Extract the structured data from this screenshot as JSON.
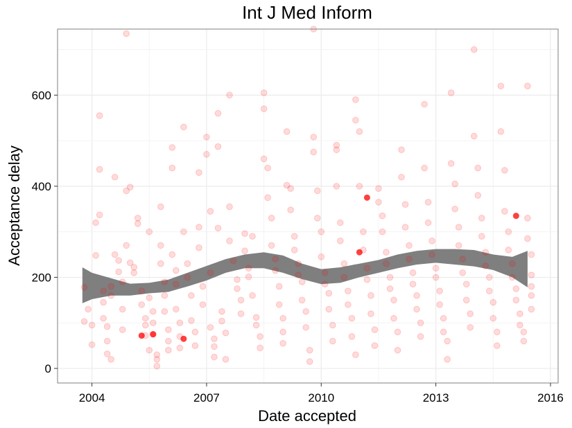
{
  "chart_data": {
    "type": "scatter",
    "title": "Int J Med Inform",
    "xlabel": "Date accepted",
    "ylabel": "Acceptance delay",
    "x_ticks": [
      2004,
      2007,
      2010,
      2013,
      2016
    ],
    "y_ticks": [
      0,
      200,
      400,
      600
    ],
    "xlim": [
      2003.1,
      2016.2
    ],
    "ylim": [
      -32,
      745
    ],
    "grid": true,
    "point_color": "#ff0000",
    "smooth_color": "#7f7f7f",
    "points": [
      [
        2003.8,
        178
      ],
      [
        2003.8,
        103
      ],
      [
        2003.9,
        130
      ],
      [
        2004.0,
        95
      ],
      [
        2004.0,
        52
      ],
      [
        2004.1,
        248
      ],
      [
        2004.1,
        320
      ],
      [
        2004.2,
        337
      ],
      [
        2004.2,
        437
      ],
      [
        2004.2,
        555
      ],
      [
        2004.3,
        170
      ],
      [
        2004.3,
        145
      ],
      [
        2004.3,
        110
      ],
      [
        2004.4,
        92
      ],
      [
        2004.4,
        60
      ],
      [
        2004.4,
        32
      ],
      [
        2004.5,
        180
      ],
      [
        2004.5,
        160
      ],
      [
        2004.5,
        20
      ],
      [
        2004.6,
        420
      ],
      [
        2004.6,
        250
      ],
      [
        2004.7,
        237
      ],
      [
        2004.7,
        212
      ],
      [
        2004.8,
        190
      ],
      [
        2004.8,
        130
      ],
      [
        2004.8,
        85
      ],
      [
        2004.9,
        735
      ],
      [
        2004.9,
        390
      ],
      [
        2004.9,
        270
      ],
      [
        2005.0,
        232
      ],
      [
        2005.0,
        398
      ],
      [
        2005.1,
        222
      ],
      [
        2005.1,
        210
      ],
      [
        2005.2,
        330
      ],
      [
        2005.2,
        318
      ],
      [
        2005.3,
        170
      ],
      [
        2005.3,
        140
      ],
      [
        2005.4,
        110
      ],
      [
        2005.4,
        72
      ],
      [
        2005.4,
        95
      ],
      [
        2005.5,
        300
      ],
      [
        2005.5,
        155
      ],
      [
        2005.5,
        40
      ],
      [
        2005.6,
        125
      ],
      [
        2005.6,
        100
      ],
      [
        2005.6,
        75
      ],
      [
        2005.7,
        30
      ],
      [
        2005.7,
        20
      ],
      [
        2005.7,
        5
      ],
      [
        2005.8,
        355
      ],
      [
        2005.8,
        270
      ],
      [
        2005.8,
        230
      ],
      [
        2005.9,
        190
      ],
      [
        2005.9,
        160
      ],
      [
        2005.9,
        125
      ],
      [
        2006.0,
        85
      ],
      [
        2006.0,
        60
      ],
      [
        2006.0,
        40
      ],
      [
        2006.1,
        485
      ],
      [
        2006.1,
        440
      ],
      [
        2006.1,
        250
      ],
      [
        2006.2,
        215
      ],
      [
        2006.2,
        185
      ],
      [
        2006.2,
        130
      ],
      [
        2006.3,
        100
      ],
      [
        2006.3,
        70
      ],
      [
        2006.3,
        45
      ],
      [
        2006.4,
        530
      ],
      [
        2006.4,
        300
      ],
      [
        2006.5,
        230
      ],
      [
        2006.5,
        200
      ],
      [
        2006.6,
        160
      ],
      [
        2006.6,
        105
      ],
      [
        2006.7,
        80
      ],
      [
        2006.7,
        50
      ],
      [
        2006.8,
        430
      ],
      [
        2006.8,
        310
      ],
      [
        2006.8,
        265
      ],
      [
        2006.9,
        180
      ],
      [
        2006.9,
        140
      ],
      [
        2007.0,
        508
      ],
      [
        2007.0,
        470
      ],
      [
        2007.1,
        345
      ],
      [
        2007.1,
        210
      ],
      [
        2007.1,
        90
      ],
      [
        2007.2,
        65
      ],
      [
        2007.2,
        48
      ],
      [
        2007.2,
        25
      ],
      [
        2007.3,
        560
      ],
      [
        2007.3,
        487
      ],
      [
        2007.3,
        308
      ],
      [
        2007.4,
        125
      ],
      [
        2007.4,
        104
      ],
      [
        2007.5,
        78
      ],
      [
        2007.5,
        20
      ],
      [
        2007.6,
        600
      ],
      [
        2007.6,
        355
      ],
      [
        2007.6,
        280
      ],
      [
        2007.7,
        236
      ],
      [
        2007.8,
        195
      ],
      [
        2007.8,
        175
      ],
      [
        2007.9,
        150
      ],
      [
        2007.9,
        120
      ],
      [
        2008.0,
        296
      ],
      [
        2008.0,
        258
      ],
      [
        2008.1,
        220
      ],
      [
        2008.1,
        201
      ],
      [
        2008.2,
        290
      ],
      [
        2008.2,
        160
      ],
      [
        2008.3,
        112
      ],
      [
        2008.3,
        95
      ],
      [
        2008.4,
        70
      ],
      [
        2008.4,
        45
      ],
      [
        2008.5,
        605
      ],
      [
        2008.5,
        570
      ],
      [
        2008.5,
        460
      ],
      [
        2008.6,
        440
      ],
      [
        2008.6,
        375
      ],
      [
        2008.7,
        330
      ],
      [
        2008.7,
        270
      ],
      [
        2008.8,
        240
      ],
      [
        2008.8,
        215
      ],
      [
        2008.9,
        180
      ],
      [
        2008.9,
        140
      ],
      [
        2009.0,
        110
      ],
      [
        2009.0,
        80
      ],
      [
        2009.0,
        55
      ],
      [
        2009.1,
        520
      ],
      [
        2009.1,
        402
      ],
      [
        2009.2,
        395
      ],
      [
        2009.2,
        348
      ],
      [
        2009.3,
        290
      ],
      [
        2009.3,
        260
      ],
      [
        2009.4,
        230
      ],
      [
        2009.4,
        205
      ],
      [
        2009.5,
        190
      ],
      [
        2009.5,
        150
      ],
      [
        2009.6,
        125
      ],
      [
        2009.6,
        90
      ],
      [
        2009.7,
        40
      ],
      [
        2009.7,
        15
      ],
      [
        2009.8,
        745
      ],
      [
        2009.8,
        508
      ],
      [
        2009.8,
        475
      ],
      [
        2009.9,
        390
      ],
      [
        2009.9,
        330
      ],
      [
        2010.0,
        300
      ],
      [
        2010.0,
        245
      ],
      [
        2010.1,
        210
      ],
      [
        2010.1,
        185
      ],
      [
        2010.2,
        165
      ],
      [
        2010.2,
        130
      ],
      [
        2010.3,
        95
      ],
      [
        2010.3,
        60
      ],
      [
        2010.4,
        490
      ],
      [
        2010.4,
        480
      ],
      [
        2010.4,
        400
      ],
      [
        2010.5,
        320
      ],
      [
        2010.5,
        280
      ],
      [
        2010.6,
        230
      ],
      [
        2010.6,
        200
      ],
      [
        2010.7,
        170
      ],
      [
        2010.7,
        140
      ],
      [
        2010.8,
        110
      ],
      [
        2010.8,
        70
      ],
      [
        2010.9,
        30
      ],
      [
        2010.9,
        590
      ],
      [
        2010.9,
        545
      ],
      [
        2011.0,
        520
      ],
      [
        2011.0,
        400
      ],
      [
        2011.1,
        300
      ],
      [
        2011.1,
        260
      ],
      [
        2011.2,
        220
      ],
      [
        2011.2,
        195
      ],
      [
        2011.3,
        160
      ],
      [
        2011.3,
        120
      ],
      [
        2011.4,
        85
      ],
      [
        2011.4,
        50
      ],
      [
        2011.5,
        395
      ],
      [
        2011.5,
        365
      ],
      [
        2011.6,
        335
      ],
      [
        2011.6,
        300
      ],
      [
        2011.7,
        255
      ],
      [
        2011.7,
        230
      ],
      [
        2011.8,
        200
      ],
      [
        2011.8,
        175
      ],
      [
        2011.9,
        150
      ],
      [
        2011.9,
        110
      ],
      [
        2012.0,
        80
      ],
      [
        2012.0,
        40
      ],
      [
        2012.1,
        480
      ],
      [
        2012.1,
        420
      ],
      [
        2012.2,
        360
      ],
      [
        2012.2,
        310
      ],
      [
        2012.3,
        270
      ],
      [
        2012.3,
        240
      ],
      [
        2012.4,
        210
      ],
      [
        2012.4,
        185
      ],
      [
        2012.5,
        160
      ],
      [
        2012.5,
        130
      ],
      [
        2012.6,
        100
      ],
      [
        2012.6,
        70
      ],
      [
        2012.7,
        580
      ],
      [
        2012.7,
        440
      ],
      [
        2012.8,
        365
      ],
      [
        2012.8,
        320
      ],
      [
        2012.9,
        280
      ],
      [
        2012.9,
        250
      ],
      [
        2013.0,
        220
      ],
      [
        2013.0,
        200
      ],
      [
        2013.1,
        170
      ],
      [
        2013.1,
        140
      ],
      [
        2013.2,
        110
      ],
      [
        2013.2,
        80
      ],
      [
        2013.3,
        60
      ],
      [
        2013.3,
        20
      ],
      [
        2013.4,
        605
      ],
      [
        2013.4,
        450
      ],
      [
        2013.5,
        405
      ],
      [
        2013.5,
        350
      ],
      [
        2013.6,
        310
      ],
      [
        2013.6,
        270
      ],
      [
        2013.7,
        240
      ],
      [
        2013.7,
        210
      ],
      [
        2013.8,
        185
      ],
      [
        2013.8,
        150
      ],
      [
        2013.9,
        120
      ],
      [
        2013.9,
        90
      ],
      [
        2014.0,
        700
      ],
      [
        2014.0,
        510
      ],
      [
        2014.1,
        440
      ],
      [
        2014.1,
        380
      ],
      [
        2014.2,
        330
      ],
      [
        2014.2,
        290
      ],
      [
        2014.3,
        255
      ],
      [
        2014.3,
        225
      ],
      [
        2014.4,
        200
      ],
      [
        2014.4,
        170
      ],
      [
        2014.5,
        145
      ],
      [
        2014.5,
        110
      ],
      [
        2014.6,
        80
      ],
      [
        2014.6,
        50
      ],
      [
        2014.7,
        620
      ],
      [
        2014.7,
        520
      ],
      [
        2014.8,
        435
      ],
      [
        2014.8,
        345
      ],
      [
        2014.9,
        300
      ],
      [
        2014.9,
        260
      ],
      [
        2015.0,
        230
      ],
      [
        2015.0,
        200
      ],
      [
        2015.1,
        175
      ],
      [
        2015.1,
        150
      ],
      [
        2015.2,
        120
      ],
      [
        2015.2,
        95
      ],
      [
        2015.3,
        80
      ],
      [
        2015.3,
        60
      ],
      [
        2015.4,
        620
      ],
      [
        2015.4,
        330
      ],
      [
        2015.4,
        285
      ],
      [
        2015.5,
        250
      ],
      [
        2015.5,
        205
      ],
      [
        2015.5,
        180
      ],
      [
        2015.5,
        160
      ],
      [
        2015.5,
        130
      ]
    ],
    "highlight_points": [
      [
        2005.3,
        72
      ],
      [
        2005.6,
        75
      ],
      [
        2006.4,
        65
      ],
      [
        2011.0,
        255
      ],
      [
        2011.2,
        375
      ],
      [
        2015.1,
        335
      ]
    ],
    "smooth": {
      "x": [
        2003.75,
        2004.0,
        2004.5,
        2005.0,
        2005.5,
        2006.0,
        2006.5,
        2007.0,
        2007.5,
        2008.0,
        2008.5,
        2009.0,
        2009.5,
        2010.0,
        2010.5,
        2011.0,
        2011.5,
        2012.0,
        2012.5,
        2013.0,
        2013.5,
        2014.0,
        2014.5,
        2015.0,
        2015.4
      ],
      "lower": [
        143,
        152,
        160,
        160,
        165,
        168,
        180,
        193,
        210,
        220,
        220,
        210,
        196,
        185,
        188,
        200,
        210,
        220,
        228,
        232,
        228,
        224,
        216,
        200,
        178
      ],
      "upper": [
        222,
        210,
        198,
        186,
        188,
        195,
        210,
        225,
        240,
        250,
        255,
        248,
        230,
        218,
        222,
        230,
        238,
        250,
        258,
        262,
        262,
        260,
        250,
        245,
        258
      ]
    }
  }
}
